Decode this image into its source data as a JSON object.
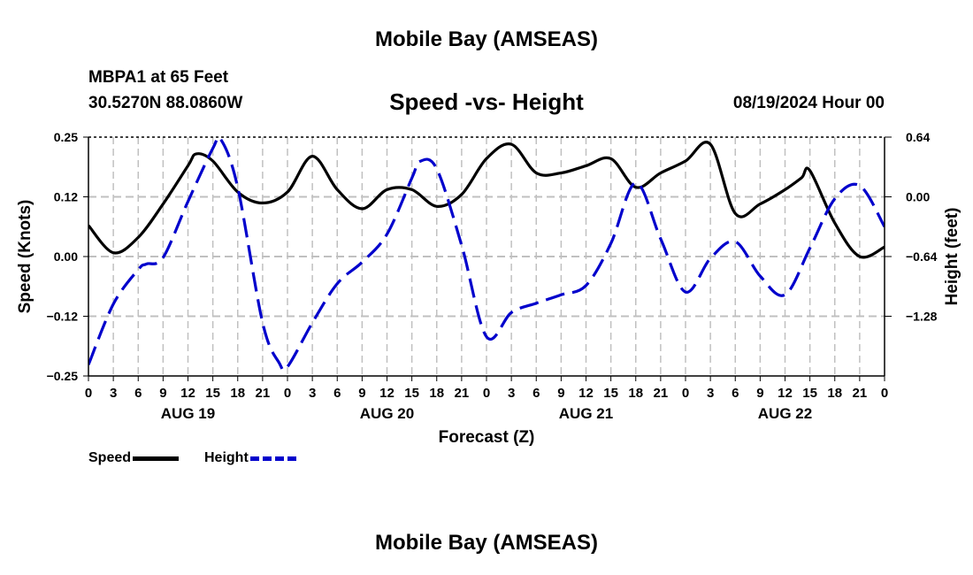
{
  "header": {
    "title": "Mobile Bay (AMSEAS)",
    "station": "MBPA1 at 65 Feet",
    "coords": "30.5270N  88.0860W",
    "subtitle": "Speed -vs- Height",
    "datetime": "08/19/2024 Hour 00"
  },
  "footer_title": "Mobile Bay (AMSEAS)",
  "legend": {
    "speed_label": "Speed",
    "height_label": "Height"
  },
  "colors": {
    "speed": "#000000",
    "height": "#0000cc",
    "grid": "#c0c0c0"
  },
  "chart_data": {
    "type": "line",
    "xlabel": "Forecast (Z)",
    "ylabel_left": "Speed (Knots)",
    "ylabel_right": "Height (feet)",
    "x_ticks": [
      "0",
      "3",
      "6",
      "9",
      "12",
      "15",
      "18",
      "21",
      "0",
      "3",
      "6",
      "9",
      "12",
      "15",
      "18",
      "21",
      "0",
      "3",
      "6",
      "9",
      "12",
      "15",
      "18",
      "21",
      "0",
      "3",
      "6",
      "9",
      "12",
      "15",
      "18",
      "21",
      "0"
    ],
    "day_labels": [
      {
        "label": "AUG 19",
        "hour": 12
      },
      {
        "label": "AUG 20",
        "hour": 36
      },
      {
        "label": "AUG 21",
        "hour": 60
      },
      {
        "label": "AUG 22",
        "hour": 84
      }
    ],
    "xlim": [
      0,
      96
    ],
    "ylim_left": [
      -0.25,
      0.25
    ],
    "y_ticks_left": [
      "0.25",
      "0.12",
      "0.00",
      "−0.12",
      "−0.25"
    ],
    "y_tick_values_left": [
      0.25,
      0.125,
      0,
      -0.125,
      -0.25
    ],
    "ylim_right": [
      -1.92,
      0.64
    ],
    "y_ticks_right": [
      "0.64",
      "0.00",
      "−0.64",
      "−1.28"
    ],
    "y_tick_values_right": [
      0.64,
      0,
      -0.64,
      -1.28
    ],
    "grid": true,
    "series": [
      {
        "name": "Speed",
        "axis": "left",
        "x": [
          0,
          3,
          6,
          9,
          12,
          13,
          15,
          18,
          21,
          24,
          27,
          30,
          33,
          36,
          39,
          42,
          45,
          48,
          51,
          54,
          57,
          60,
          63,
          66,
          69,
          72,
          75,
          78,
          81,
          84,
          86,
          87,
          90,
          93,
          96
        ],
        "y": [
          0.065,
          0.008,
          0.04,
          0.11,
          0.19,
          0.215,
          0.2,
          0.135,
          0.112,
          0.135,
          0.21,
          0.14,
          0.1,
          0.14,
          0.14,
          0.105,
          0.13,
          0.205,
          0.235,
          0.175,
          0.175,
          0.19,
          0.205,
          0.145,
          0.175,
          0.2,
          0.235,
          0.09,
          0.11,
          0.14,
          0.165,
          0.18,
          0.07,
          0.0,
          0.02
        ]
      },
      {
        "name": "Height",
        "axis": "right",
        "x": [
          0,
          3,
          6,
          7,
          9,
          12,
          15,
          16,
          18,
          21,
          23,
          24,
          27,
          30,
          33,
          36,
          39,
          40,
          42,
          45,
          48,
          51,
          54,
          57,
          60,
          63,
          66,
          69,
          72,
          75,
          78,
          81,
          84,
          87,
          90,
          93,
          96
        ],
        "y": [
          -1.8,
          -1.15,
          -0.78,
          -0.72,
          -0.65,
          -0.05,
          0.52,
          0.61,
          0.1,
          -1.35,
          -1.78,
          -1.82,
          -1.35,
          -0.93,
          -0.7,
          -0.4,
          0.2,
          0.38,
          0.3,
          -0.52,
          -1.5,
          -1.24,
          -1.14,
          -1.05,
          -0.95,
          -0.5,
          0.15,
          -0.45,
          -1.02,
          -0.66,
          -0.48,
          -0.85,
          -1.05,
          -0.55,
          -0.02,
          0.12,
          -0.32
        ]
      }
    ]
  }
}
